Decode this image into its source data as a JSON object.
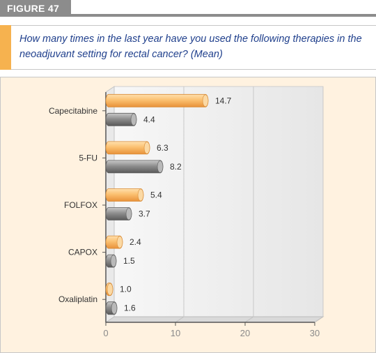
{
  "figure_label": "FIGURE 47",
  "question": "How many times in the last year have you used the following therapies in the neoadjuvant setting for rectal cancer? (Mean)",
  "colors": {
    "accent": "#f6b24f",
    "series_orange": "#f8b865",
    "series_gray": "#8f8f8f",
    "panel": "#fff2e0",
    "text_blue": "#1f3f8c"
  },
  "chart_data": {
    "type": "bar",
    "orientation": "horizontal",
    "title": "",
    "xlabel": "",
    "ylabel": "",
    "categories": [
      "Capecitabine",
      "5-FU",
      "FOLFOX",
      "CAPOX",
      "Oxaliplatin"
    ],
    "series": [
      {
        "color": "#f8b865",
        "values": [
          14.7,
          6.3,
          5.4,
          2.4,
          1.0
        ]
      },
      {
        "color": "#8f8f8f",
        "values": [
          4.4,
          8.2,
          3.7,
          1.5,
          1.6
        ]
      }
    ],
    "value_labels": [
      [
        "14.7",
        "6.3",
        "5.4",
        "2.4",
        "1.0"
      ],
      [
        "4.4",
        "8.2",
        "3.7",
        "1.5",
        "1.6"
      ]
    ],
    "xlim": [
      0,
      30
    ],
    "xticks": [
      0,
      10,
      20,
      30
    ],
    "xtick_labels": [
      "0",
      "10",
      "20",
      "30"
    ],
    "grid": true
  }
}
